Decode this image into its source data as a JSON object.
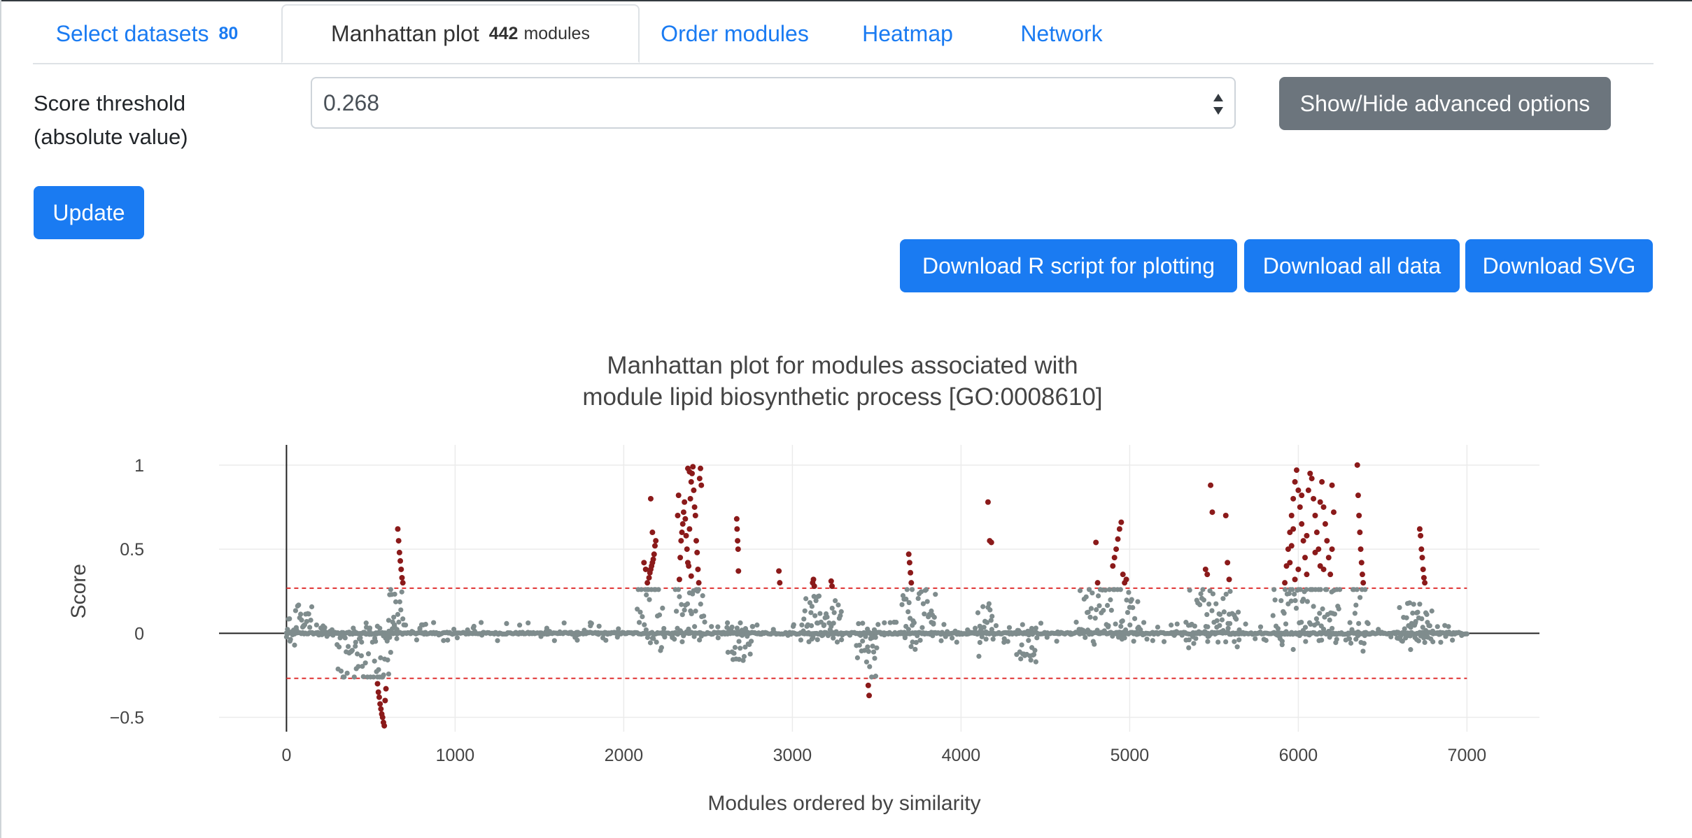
{
  "tabs": [
    {
      "label": "Select datasets",
      "badge": "80"
    },
    {
      "label": "Manhattan plot",
      "badge": "442",
      "badge_suffix": "modules"
    },
    {
      "label": "Order modules"
    },
    {
      "label": "Heatmap"
    },
    {
      "label": "Network"
    }
  ],
  "controls": {
    "threshold_label_line1": "Score threshold",
    "threshold_label_line2": "(absolute value)",
    "threshold_value": "0.268",
    "advanced_button": "Show/Hide advanced options",
    "update_button": "Update",
    "download_r": "Download R script for plotting",
    "download_all": "Download all data",
    "download_svg": "Download SVG"
  },
  "colors": {
    "accent": "#1a7bf2",
    "secondary": "#6c757d",
    "significant_point": "#8b1a1a",
    "normal_point": "#7f8c8d",
    "threshold_line": "#e03131"
  },
  "chart_data": {
    "type": "scatter",
    "title_line1": "Manhattan plot for modules associated with",
    "title_line2": "module lipid biosynthetic process [GO:0008610]",
    "xlabel": "Modules ordered by similarity",
    "ylabel": "Score",
    "xlim": [
      -400,
      7430
    ],
    "ylim": [
      -0.585,
      1.12
    ],
    "xticks": [
      0,
      1000,
      2000,
      3000,
      4000,
      5000,
      6000,
      7000
    ],
    "xtick_labels": [
      "0",
      "1000",
      "2000",
      "3000",
      "4000",
      "5000",
      "6000",
      "7000"
    ],
    "yticks": [
      -0.5,
      0,
      0.5,
      1
    ],
    "ytick_labels": [
      "−0.5",
      "0",
      "0.5",
      "1"
    ],
    "threshold": 0.268,
    "grid": true,
    "series": [
      {
        "points": [
          [
            2140,
            0.3
          ],
          [
            2150,
            0.33
          ],
          [
            2155,
            0.36
          ],
          [
            2160,
            0.38
          ],
          [
            2165,
            0.4
          ],
          [
            2170,
            0.42
          ],
          [
            2175,
            0.44
          ],
          [
            2180,
            0.47
          ],
          [
            2185,
            0.52
          ],
          [
            2190,
            0.55
          ],
          [
            2160,
            0.8
          ],
          [
            2170,
            0.6
          ],
          [
            2120,
            0.42
          ],
          [
            2130,
            0.38
          ],
          [
            2330,
            0.32
          ],
          [
            2335,
            0.45
          ],
          [
            2340,
            0.55
          ],
          [
            2345,
            0.6
          ],
          [
            2350,
            0.65
          ],
          [
            2355,
            0.72
          ],
          [
            2360,
            0.78
          ],
          [
            2365,
            0.68
          ],
          [
            2370,
            0.58
          ],
          [
            2375,
            0.5
          ],
          [
            2380,
            0.42
          ],
          [
            2385,
            0.4
          ],
          [
            2390,
            0.62
          ],
          [
            2395,
            0.8
          ],
          [
            2400,
            0.9
          ],
          [
            2405,
            0.95
          ],
          [
            2410,
            0.99
          ],
          [
            2415,
            0.85
          ],
          [
            2420,
            0.75
          ],
          [
            2425,
            0.7
          ],
          [
            2430,
            0.55
          ],
          [
            2435,
            0.48
          ],
          [
            2440,
            0.38
          ],
          [
            2445,
            0.3
          ],
          [
            2450,
            0.92
          ],
          [
            2455,
            0.98
          ],
          [
            2460,
            0.88
          ],
          [
            2380,
            0.98
          ],
          [
            2390,
            0.96
          ],
          [
            2400,
            0.34
          ],
          [
            2320,
            0.7
          ],
          [
            2325,
            0.82
          ],
          [
            2670,
            0.68
          ],
          [
            2672,
            0.62
          ],
          [
            2675,
            0.55
          ],
          [
            2678,
            0.5
          ],
          [
            2680,
            0.37
          ],
          [
            2920,
            0.37
          ],
          [
            2925,
            0.3
          ],
          [
            3120,
            0.3
          ],
          [
            3125,
            0.32
          ],
          [
            3130,
            0.28
          ],
          [
            3230,
            0.31
          ],
          [
            3235,
            0.28
          ],
          [
            3450,
            -0.31
          ],
          [
            3455,
            -0.37
          ],
          [
            3690,
            0.47
          ],
          [
            3695,
            0.42
          ],
          [
            3700,
            0.36
          ],
          [
            3705,
            0.3
          ],
          [
            4160,
            0.78
          ],
          [
            4170,
            0.55
          ],
          [
            4180,
            0.54
          ],
          [
            4800,
            0.54
          ],
          [
            4810,
            0.3
          ],
          [
            4900,
            0.4
          ],
          [
            4910,
            0.45
          ],
          [
            4920,
            0.5
          ],
          [
            4930,
            0.56
          ],
          [
            4940,
            0.62
          ],
          [
            4950,
            0.66
          ],
          [
            4960,
            0.35
          ],
          [
            4970,
            0.3
          ],
          [
            4980,
            0.32
          ],
          [
            5480,
            0.88
          ],
          [
            5490,
            0.72
          ],
          [
            5450,
            0.38
          ],
          [
            5460,
            0.35
          ],
          [
            5570,
            0.7
          ],
          [
            5580,
            0.42
          ],
          [
            5590,
            0.32
          ],
          [
            5920,
            0.3
          ],
          [
            5930,
            0.4
          ],
          [
            5940,
            0.5
          ],
          [
            5950,
            0.6
          ],
          [
            5960,
            0.7
          ],
          [
            5970,
            0.8
          ],
          [
            5980,
            0.9
          ],
          [
            5990,
            0.97
          ],
          [
            6000,
            0.85
          ],
          [
            6010,
            0.75
          ],
          [
            6020,
            0.65
          ],
          [
            6030,
            0.55
          ],
          [
            6040,
            0.45
          ],
          [
            6050,
            0.35
          ],
          [
            6060,
            0.85
          ],
          [
            6070,
            0.95
          ],
          [
            6080,
            0.92
          ],
          [
            6090,
            0.8
          ],
          [
            6100,
            0.7
          ],
          [
            6110,
            0.6
          ],
          [
            6120,
            0.5
          ],
          [
            6130,
            0.4
          ],
          [
            6140,
            0.9
          ],
          [
            6150,
            0.75
          ],
          [
            6160,
            0.65
          ],
          [
            6170,
            0.55
          ],
          [
            6180,
            0.45
          ],
          [
            6190,
            0.35
          ],
          [
            6200,
            0.88
          ],
          [
            6210,
            0.72
          ],
          [
            5950,
            0.42
          ],
          [
            5960,
            0.52
          ],
          [
            5970,
            0.62
          ],
          [
            6000,
            0.38
          ],
          [
            6050,
            0.58
          ],
          [
            6100,
            0.48
          ],
          [
            6150,
            0.38
          ],
          [
            6200,
            0.5
          ],
          [
            5980,
            0.32
          ],
          [
            6020,
            0.82
          ],
          [
            6130,
            0.78
          ],
          [
            6350,
            1.0
          ],
          [
            6355,
            0.82
          ],
          [
            6360,
            0.7
          ],
          [
            6365,
            0.6
          ],
          [
            6370,
            0.5
          ],
          [
            6375,
            0.42
          ],
          [
            6380,
            0.35
          ],
          [
            6385,
            0.3
          ],
          [
            6720,
            0.62
          ],
          [
            6725,
            0.58
          ],
          [
            6730,
            0.5
          ],
          [
            6735,
            0.45
          ],
          [
            6740,
            0.38
          ],
          [
            6745,
            0.33
          ],
          [
            6750,
            0.3
          ],
          [
            660,
            0.62
          ],
          [
            665,
            0.55
          ],
          [
            670,
            0.48
          ],
          [
            675,
            0.43
          ],
          [
            680,
            0.38
          ],
          [
            685,
            0.33
          ],
          [
            690,
            0.3
          ],
          [
            540,
            -0.3
          ],
          [
            545,
            -0.35
          ],
          [
            550,
            -0.38
          ],
          [
            555,
            -0.42
          ],
          [
            560,
            -0.45
          ],
          [
            565,
            -0.48
          ],
          [
            570,
            -0.5
          ],
          [
            575,
            -0.53
          ],
          [
            580,
            -0.55
          ],
          [
            585,
            -0.4
          ],
          [
            590,
            -0.33
          ]
        ],
        "color": "#8b1a1a"
      }
    ]
  }
}
